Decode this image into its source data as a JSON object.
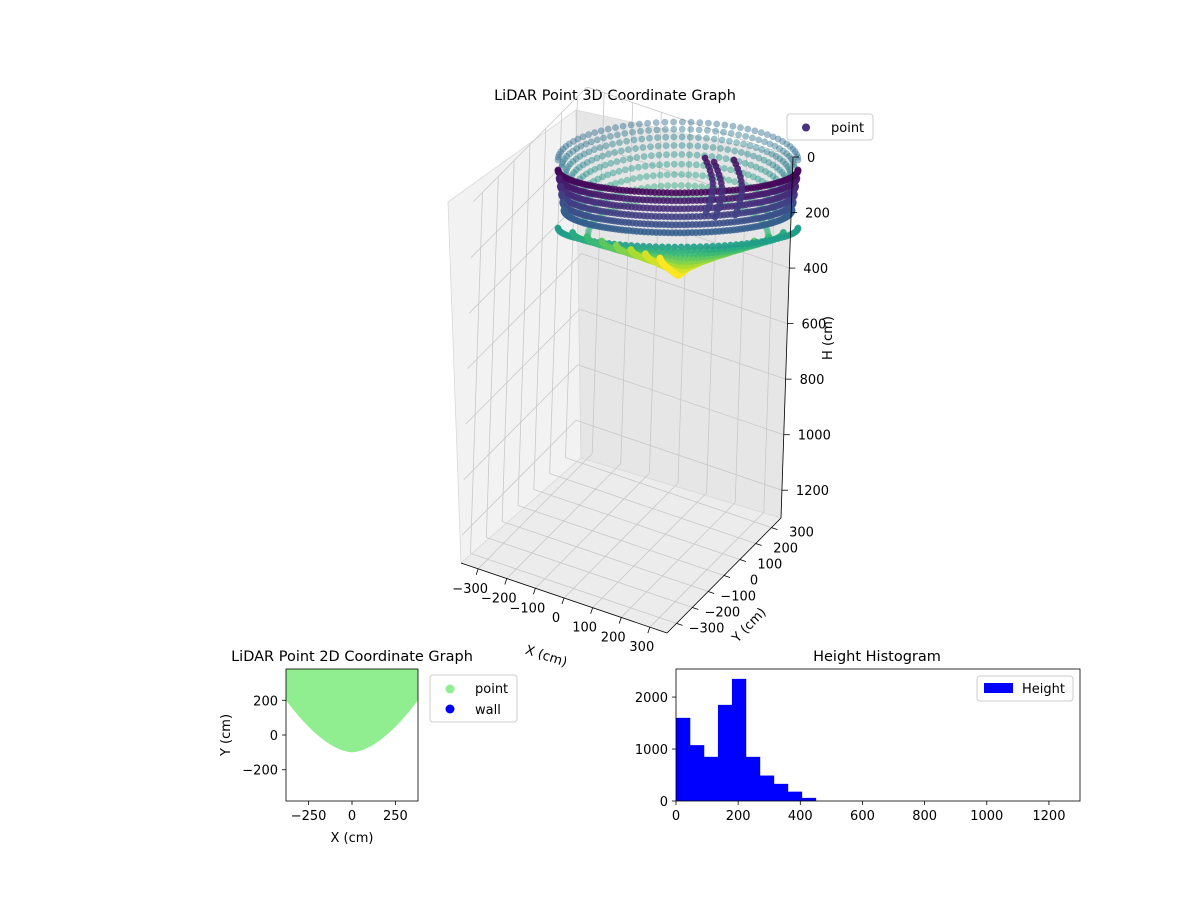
{
  "chart_data": [
    {
      "type": "scatter",
      "title": "LiDAR Point 3D Coordinate Graph",
      "xlabel": "X (cm)",
      "ylabel": "Y (cm)",
      "zlabel": "H (cm)",
      "x_ticks": [
        "−300",
        "−200",
        "−100",
        "0",
        "100",
        "200",
        "300"
      ],
      "y_ticks": [
        "−300",
        "−200",
        "−100",
        "0",
        "100",
        "200",
        "300"
      ],
      "z_ticks": [
        "0",
        "200",
        "400",
        "600",
        "800",
        "1000",
        "1200"
      ],
      "xlim": [
        -360,
        360
      ],
      "ylim": [
        -360,
        360
      ],
      "zlim": [
        0,
        1300
      ],
      "z_inverted": true,
      "colormap": "viridis",
      "shape": "bowl-shaped point cloud, rim near H 0–150 cm, lowest point near H 380 cm at the center",
      "legend": {
        "entries": [
          "point"
        ],
        "placement": "upper-right",
        "color": "#46327e"
      },
      "grid": true
    },
    {
      "type": "scatter",
      "title": "LiDAR Point 2D Coordinate Graph",
      "xlabel": "X (cm)",
      "ylabel": "Y (cm)",
      "x_ticks": [
        "−250",
        "0",
        "250"
      ],
      "y_ticks": [
        "200",
        "0",
        "−200"
      ],
      "xlim": [
        -380,
        380
      ],
      "ylim": [
        -380,
        380
      ],
      "region": "filled half-disc of points: Y from about −100 cm up to 380 cm, edge curving from (±380, 200) down to (0, −100)",
      "legend": {
        "entries": [
          {
            "label": "point",
            "color": "#90ee90"
          },
          {
            "label": "wall",
            "color": "#0000ff"
          }
        ],
        "placement": "outside-right"
      },
      "grid": false
    },
    {
      "type": "bar",
      "title": "Height Histogram",
      "series": [
        {
          "name": "Height",
          "color": "#0000ff",
          "bin_width": 45,
          "bin_start": 0,
          "values": [
            1600,
            1075,
            850,
            1850,
            2350,
            850,
            490,
            330,
            180,
            60
          ]
        }
      ],
      "x_ticks": [
        0,
        200,
        400,
        600,
        800,
        1000,
        1200
      ],
      "y_ticks": [
        0,
        1000,
        2000
      ],
      "xlim": [
        0,
        1300
      ],
      "ylim": [
        0,
        2540
      ],
      "legend": {
        "entries": [
          "Height"
        ],
        "placement": "upper-right"
      },
      "grid": false
    }
  ]
}
